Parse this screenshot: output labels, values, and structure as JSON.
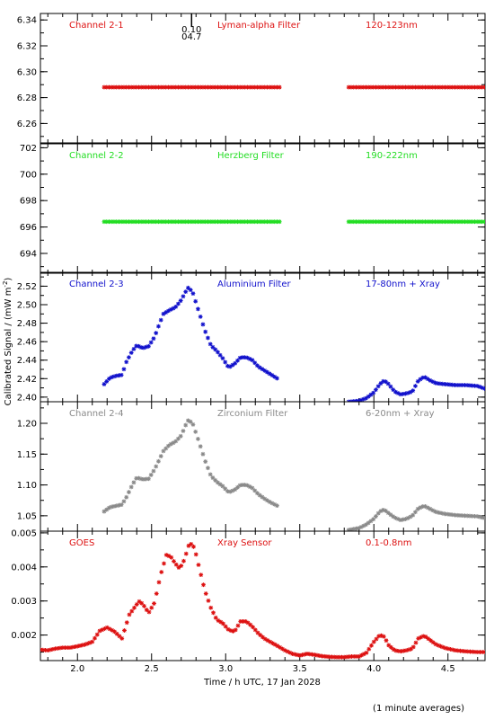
{
  "chart_data": {
    "type": "scatter",
    "xlabel": "Time / h UTC, 17 Jan 2028",
    "ylabel": "Calibrated Signal / (mW m",
    "ylabel_sup": "-2",
    "ylabel_end": ")",
    "footnote": "(1 minute averages)",
    "xlim": [
      1.75,
      4.75
    ],
    "xticks": [
      2.0,
      2.5,
      3.0,
      3.5,
      4.0,
      4.5
    ],
    "xtick_labels": [
      "2.0",
      "2.5",
      "3.0",
      "3.5",
      "4.0",
      "4.5"
    ],
    "grid": false,
    "top_marker": {
      "x": 2.77,
      "label1": "0.10",
      "label2": "04.7"
    },
    "panels": [
      {
        "name": "Channel 2-1",
        "filter": "Lyman-alpha Filter",
        "band": "120-123nm",
        "color": "#dd1111",
        "ylim": [
          6.245,
          6.345
        ],
        "yticks": [
          6.26,
          6.28,
          6.3,
          6.32,
          6.34
        ],
        "ytick_labels": [
          "6.26",
          "6.28",
          "6.30",
          "6.32",
          "6.34"
        ],
        "series": [
          {
            "type": "flat",
            "x": [
              2.18,
              3.37
            ],
            "y": 6.288
          },
          {
            "type": "flat",
            "x": [
              3.83,
              4.75
            ],
            "y": 6.288
          }
        ]
      },
      {
        "name": "Channel 2-2",
        "filter": "Herzberg Filter",
        "band": "190-222nm",
        "color": "#22dd22",
        "ylim": [
          692.5,
          702.3
        ],
        "yticks": [
          694,
          696,
          698,
          700,
          702
        ],
        "ytick_labels": [
          "694",
          "696",
          "698",
          "700",
          "702"
        ],
        "series": [
          {
            "type": "flat",
            "x": [
              2.18,
              3.37
            ],
            "y": 696.4
          },
          {
            "type": "flat",
            "x": [
              3.83,
              4.75
            ],
            "y": 696.4
          }
        ]
      },
      {
        "name": "Channel 2-3",
        "filter": "Aluminium Filter",
        "band": "17-80nm + Xray",
        "color": "#1111cc",
        "ylim": [
          2.395,
          2.535
        ],
        "yticks": [
          2.4,
          2.42,
          2.44,
          2.46,
          2.48,
          2.5,
          2.52
        ],
        "ytick_labels": [
          "2.40",
          "2.42",
          "2.44",
          "2.46",
          "2.48",
          "2.50",
          "2.52"
        ],
        "series": [
          {
            "type": "curve",
            "points": [
              [
                2.18,
                2.414
              ],
              [
                2.22,
                2.421
              ],
              [
                2.26,
                2.423
              ],
              [
                2.3,
                2.424
              ],
              [
                2.33,
                2.438
              ],
              [
                2.37,
                2.45
              ],
              [
                2.4,
                2.456
              ],
              [
                2.44,
                2.453
              ],
              [
                2.48,
                2.455
              ],
              [
                2.52,
                2.465
              ],
              [
                2.55,
                2.478
              ],
              [
                2.58,
                2.49
              ],
              [
                2.62,
                2.494
              ],
              [
                2.66,
                2.497
              ],
              [
                2.7,
                2.505
              ],
              [
                2.73,
                2.514
              ],
              [
                2.75,
                2.519
              ],
              [
                2.78,
                2.512
              ],
              [
                2.82,
                2.492
              ],
              [
                2.86,
                2.472
              ],
              [
                2.9,
                2.456
              ],
              [
                2.94,
                2.45
              ],
              [
                2.98,
                2.442
              ],
              [
                3.02,
                2.432
              ],
              [
                3.06,
                2.436
              ],
              [
                3.1,
                2.443
              ],
              [
                3.14,
                2.443
              ],
              [
                3.18,
                2.44
              ],
              [
                3.22,
                2.433
              ],
              [
                3.26,
                2.429
              ],
              [
                3.3,
                2.425
              ],
              [
                3.35,
                2.42
              ]
            ]
          },
          {
            "type": "curve",
            "points": [
              [
                3.83,
                2.395
              ],
              [
                3.9,
                2.396
              ],
              [
                3.95,
                2.399
              ],
              [
                4.0,
                2.405
              ],
              [
                4.04,
                2.414
              ],
              [
                4.07,
                2.418
              ],
              [
                4.1,
                2.414
              ],
              [
                4.14,
                2.406
              ],
              [
                4.18,
                2.403
              ],
              [
                4.22,
                2.404
              ],
              [
                4.26,
                2.406
              ],
              [
                4.3,
                2.418
              ],
              [
                4.34,
                2.422
              ],
              [
                4.38,
                2.418
              ],
              [
                4.42,
                2.415
              ],
              [
                4.48,
                2.414
              ],
              [
                4.55,
                2.413
              ],
              [
                4.62,
                2.413
              ],
              [
                4.7,
                2.412
              ],
              [
                4.75,
                2.409
              ]
            ]
          }
        ]
      },
      {
        "name": "Channel 2-4",
        "filter": "Zirconium Filter",
        "band": "6-20nm + Xray",
        "color": "#8a8a8a",
        "ylim": [
          1.025,
          1.235
        ],
        "yticks": [
          1.05,
          1.1,
          1.15,
          1.2
        ],
        "ytick_labels": [
          "1.05",
          "1.10",
          "1.15",
          "1.20"
        ],
        "series": [
          {
            "type": "curve",
            "points": [
              [
                2.18,
                1.057
              ],
              [
                2.22,
                1.064
              ],
              [
                2.26,
                1.066
              ],
              [
                2.3,
                1.068
              ],
              [
                2.33,
                1.08
              ],
              [
                2.37,
                1.1
              ],
              [
                2.4,
                1.112
              ],
              [
                2.44,
                1.109
              ],
              [
                2.48,
                1.11
              ],
              [
                2.52,
                1.125
              ],
              [
                2.55,
                1.14
              ],
              [
                2.58,
                1.155
              ],
              [
                2.62,
                1.165
              ],
              [
                2.66,
                1.17
              ],
              [
                2.7,
                1.18
              ],
              [
                2.73,
                1.197
              ],
              [
                2.75,
                1.206
              ],
              [
                2.78,
                1.198
              ],
              [
                2.82,
                1.17
              ],
              [
                2.86,
                1.14
              ],
              [
                2.9,
                1.115
              ],
              [
                2.94,
                1.105
              ],
              [
                2.98,
                1.098
              ],
              [
                3.02,
                1.088
              ],
              [
                3.06,
                1.092
              ],
              [
                3.1,
                1.1
              ],
              [
                3.14,
                1.1
              ],
              [
                3.18,
                1.095
              ],
              [
                3.22,
                1.085
              ],
              [
                3.26,
                1.078
              ],
              [
                3.3,
                1.072
              ],
              [
                3.35,
                1.066
              ]
            ]
          },
          {
            "type": "curve",
            "points": [
              [
                3.83,
                1.027
              ],
              [
                3.9,
                1.03
              ],
              [
                3.95,
                1.036
              ],
              [
                4.0,
                1.045
              ],
              [
                4.04,
                1.057
              ],
              [
                4.07,
                1.06
              ],
              [
                4.1,
                1.054
              ],
              [
                4.14,
                1.047
              ],
              [
                4.18,
                1.043
              ],
              [
                4.22,
                1.045
              ],
              [
                4.26,
                1.05
              ],
              [
                4.3,
                1.062
              ],
              [
                4.34,
                1.066
              ],
              [
                4.38,
                1.061
              ],
              [
                4.42,
                1.056
              ],
              [
                4.48,
                1.053
              ],
              [
                4.55,
                1.051
              ],
              [
                4.62,
                1.05
              ],
              [
                4.7,
                1.049
              ],
              [
                4.75,
                1.046
              ]
            ]
          }
        ]
      },
      {
        "name": "GOES",
        "filter": "Xray Sensor",
        "band": "0.1-0.8nm",
        "color": "#dd1111",
        "ylim": [
          0.00125,
          0.00505
        ],
        "yticks": [
          0.002,
          0.003,
          0.004,
          0.005
        ],
        "ytick_labels": [
          "0.002",
          "0.003",
          "0.004",
          "0.005"
        ],
        "series": [
          {
            "type": "curve",
            "points": [
              [
                1.75,
                0.00157
              ],
              [
                1.8,
                0.00155
              ],
              [
                1.85,
                0.0016
              ],
              [
                1.9,
                0.00163
              ],
              [
                1.95,
                0.00163
              ],
              [
                2.0,
                0.00167
              ],
              [
                2.05,
                0.00172
              ],
              [
                2.1,
                0.0018
              ],
              [
                2.15,
                0.00212
              ],
              [
                2.2,
                0.00222
              ],
              [
                2.25,
                0.0021
              ],
              [
                2.3,
                0.0019
              ],
              [
                2.35,
                0.0026
              ],
              [
                2.4,
                0.0029
              ],
              [
                2.42,
                0.003
              ],
              [
                2.45,
                0.00285
              ],
              [
                2.48,
                0.00265
              ],
              [
                2.52,
                0.00295
              ],
              [
                2.56,
                0.00375
              ],
              [
                2.6,
                0.00435
              ],
              [
                2.63,
                0.0043
              ],
              [
                2.66,
                0.0041
              ],
              [
                2.69,
                0.00395
              ],
              [
                2.72,
                0.0042
              ],
              [
                2.75,
                0.00462
              ],
              [
                2.77,
                0.00468
              ],
              [
                2.79,
                0.00455
              ],
              [
                2.82,
                0.004
              ],
              [
                2.86,
                0.0033
              ],
              [
                2.9,
                0.0028
              ],
              [
                2.94,
                0.00245
              ],
              [
                2.98,
                0.00235
              ],
              [
                3.02,
                0.00215
              ],
              [
                3.06,
                0.0021
              ],
              [
                3.1,
                0.0024
              ],
              [
                3.14,
                0.0024
              ],
              [
                3.18,
                0.00225
              ],
              [
                3.22,
                0.00205
              ],
              [
                3.26,
                0.0019
              ],
              [
                3.3,
                0.0018
              ],
              [
                3.35,
                0.00168
              ],
              [
                3.4,
                0.00155
              ],
              [
                3.45,
                0.00145
              ],
              [
                3.5,
                0.0014
              ],
              [
                3.55,
                0.00145
              ],
              [
                3.6,
                0.00142
              ],
              [
                3.65,
                0.00138
              ],
              [
                3.7,
                0.00136
              ],
              [
                3.75,
                0.00135
              ],
              [
                3.8,
                0.00135
              ],
              [
                3.85,
                0.00137
              ],
              [
                3.9,
                0.00137
              ],
              [
                3.95,
                0.00148
              ],
              [
                4.0,
                0.0018
              ],
              [
                4.04,
                0.002
              ],
              [
                4.07,
                0.00195
              ],
              [
                4.1,
                0.0017
              ],
              [
                4.14,
                0.00155
              ],
              [
                4.18,
                0.00152
              ],
              [
                4.22,
                0.00155
              ],
              [
                4.26,
                0.0016
              ],
              [
                4.3,
                0.0019
              ],
              [
                4.34,
                0.00198
              ],
              [
                4.38,
                0.00185
              ],
              [
                4.42,
                0.00172
              ],
              [
                4.48,
                0.00162
              ],
              [
                4.55,
                0.00155
              ],
              [
                4.62,
                0.00152
              ],
              [
                4.7,
                0.0015
              ],
              [
                4.75,
                0.0015
              ]
            ]
          }
        ]
      }
    ]
  }
}
